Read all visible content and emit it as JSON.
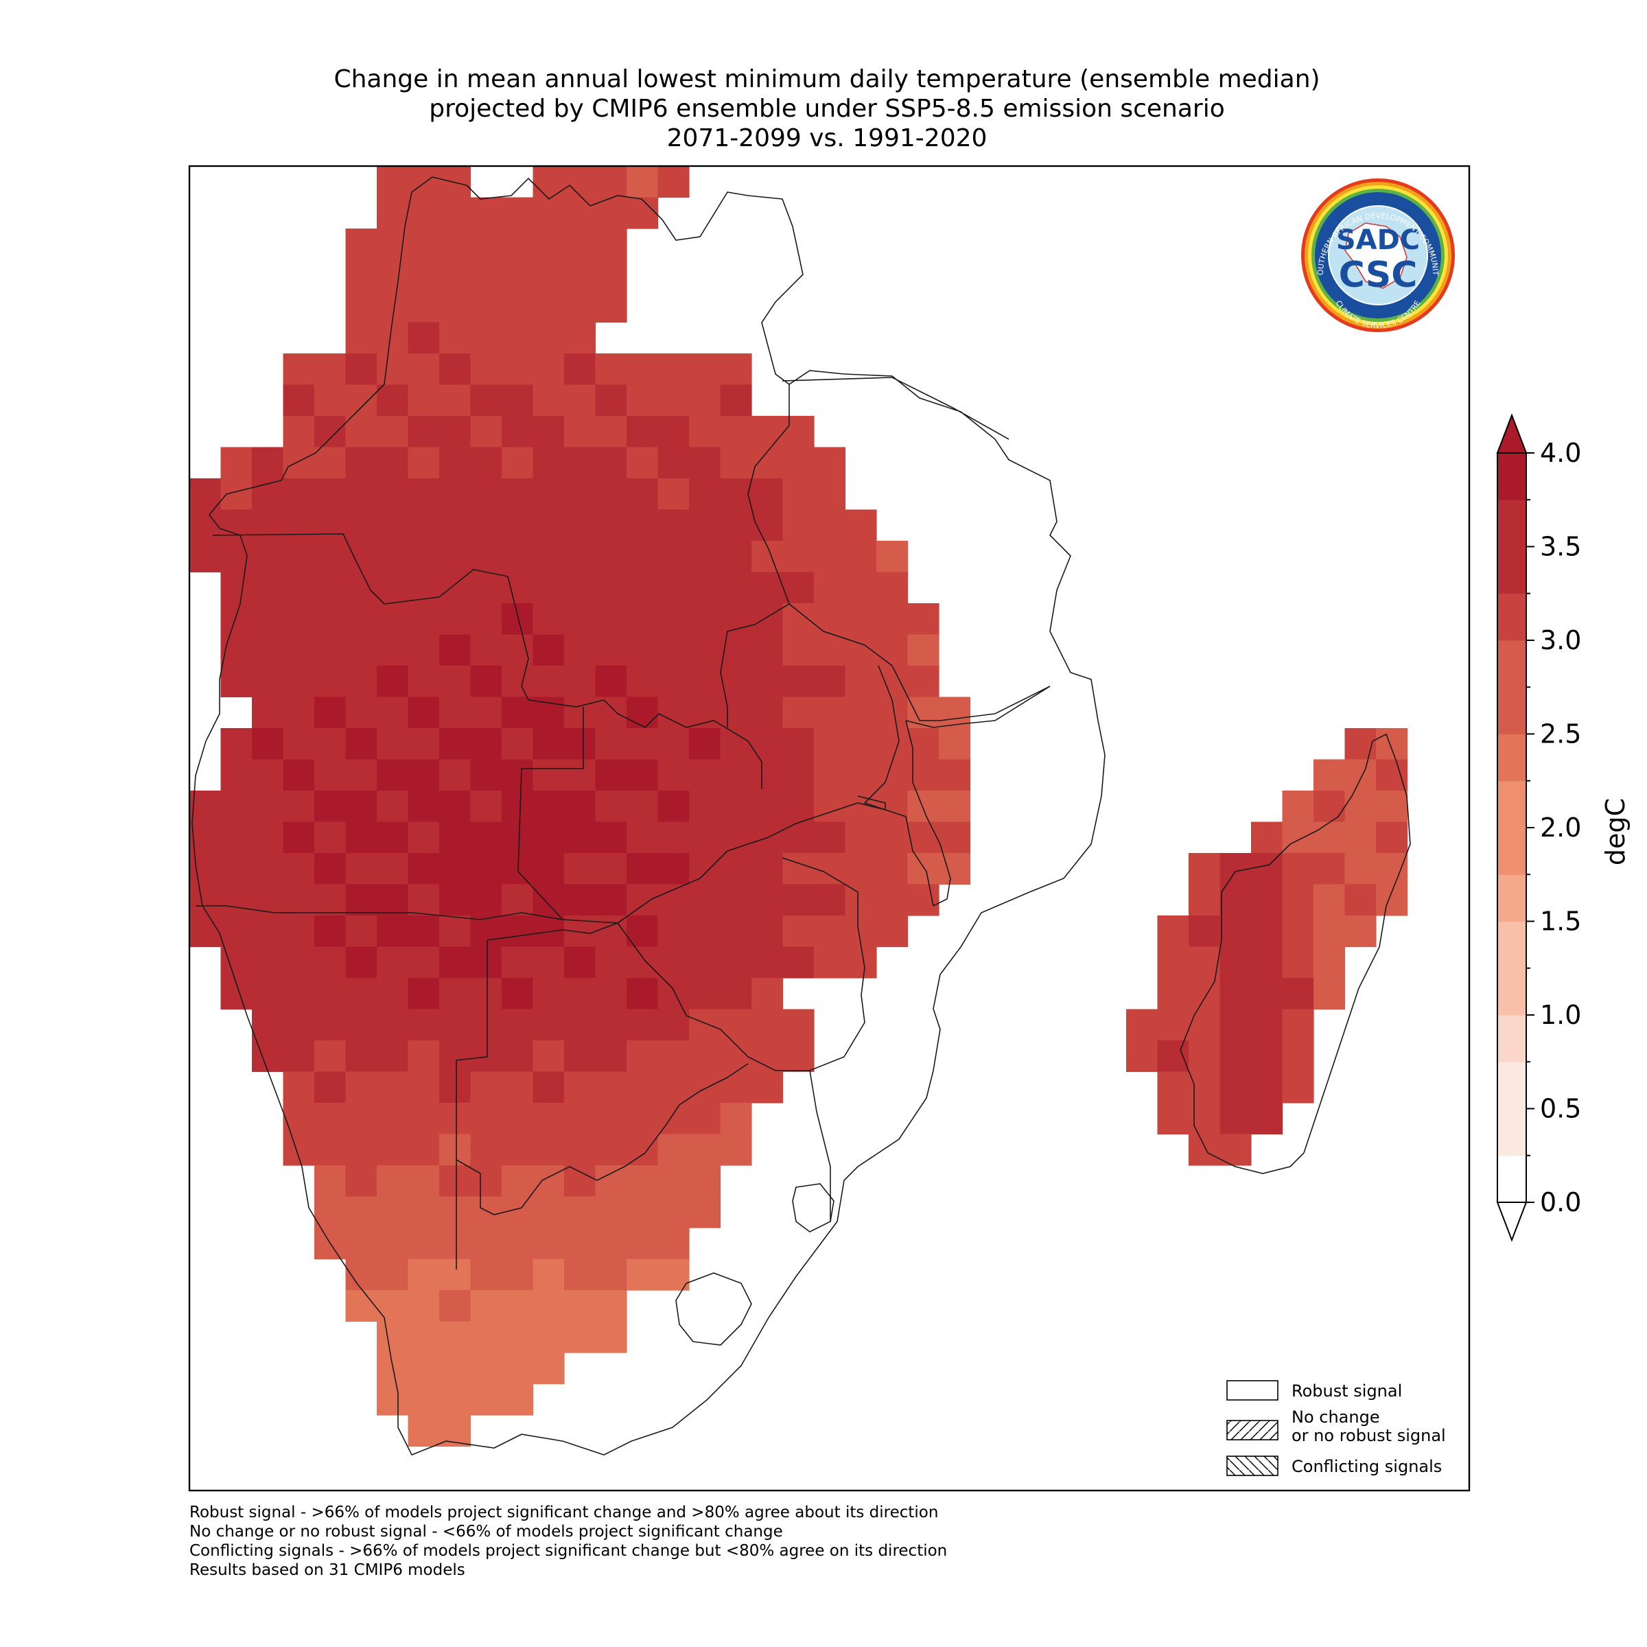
{
  "title": {
    "line1": "Change in mean annual lowest minimum daily temperature (ensemble median)",
    "line2": "projected by CMIP6 ensemble under SSP5-8.5 emission scenario",
    "line3": "2071-2099 vs. 1991-2020"
  },
  "logo": {
    "ring_text": "SOUTHERN AFRICAN DEVELOPMENT COMMUNITY",
    "bottom_text": "CLIMATE SERVICES CENTRE",
    "mark_top": "SADC",
    "mark_bottom": "CSC"
  },
  "colorbar": {
    "unit": "degC",
    "ticks": [
      "0.0",
      "0.5",
      "1.0",
      "1.5",
      "2.0",
      "2.5",
      "3.0",
      "3.5",
      "4.0"
    ],
    "colors": [
      "#ffffff",
      "#fbe9e1",
      "#fad7c9",
      "#f8c0a8",
      "#f5a88a",
      "#ee8f6e",
      "#e27458",
      "#d55c4b",
      "#c8433d",
      "#b82c33",
      "#aa1a2a"
    ],
    "extend": "both"
  },
  "legend": {
    "items": [
      {
        "label": "Robust signal",
        "pattern": "none"
      },
      {
        "label": "No change",
        "label2": "or no robust signal",
        "pattern": "forward-hatch"
      },
      {
        "label": "Conflicting signals",
        "pattern": "back-hatch"
      }
    ]
  },
  "footnotes": [
    "Robust signal - >66% of models project significant change and >80% agree about its direction",
    "No change or no robust signal - <66% of models project significant change",
    "Conflicting signals - >66% of models project significant change but <80% agree on its direction",
    "Results based on 31 CMIP6 models"
  ]
}
